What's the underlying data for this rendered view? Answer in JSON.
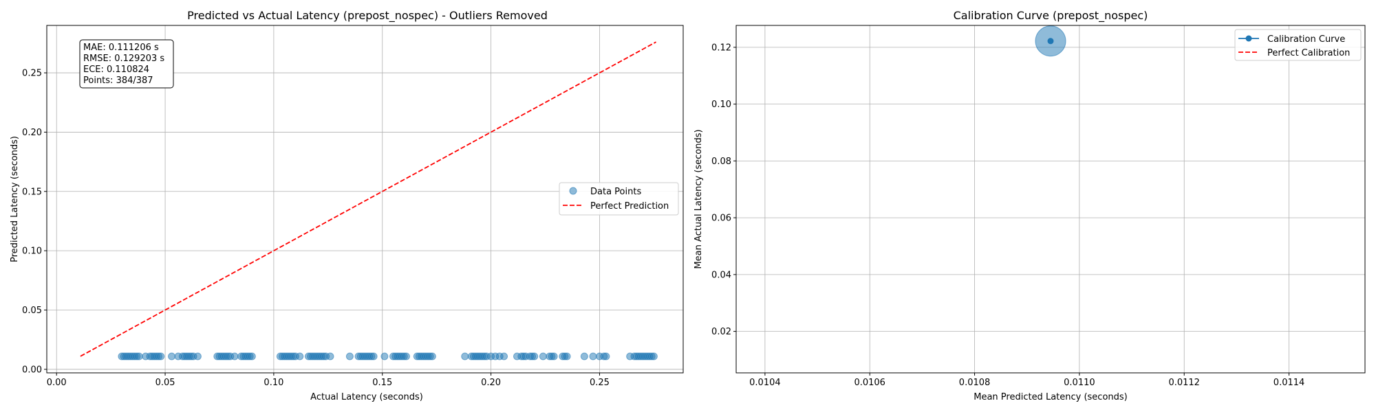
{
  "chart_data": [
    {
      "type": "scatter",
      "title": "Predicted vs Actual Latency (prepost_nospec) - Outliers Removed",
      "xlabel": "Actual Latency (seconds)",
      "ylabel": "Predicted Latency (seconds)",
      "xlim": [
        -0.0045,
        0.2885
      ],
      "ylim": [
        -0.003,
        0.29
      ],
      "xticks": [
        0.0,
        0.05,
        0.1,
        0.15,
        0.2,
        0.25
      ],
      "xtick_labels": [
        "0.00",
        "0.05",
        "0.10",
        "0.15",
        "0.20",
        "0.25"
      ],
      "yticks": [
        0.0,
        0.05,
        0.1,
        0.15,
        0.2,
        0.25
      ],
      "ytick_labels": [
        "0.00",
        "0.05",
        "0.10",
        "0.15",
        "0.20",
        "0.25"
      ],
      "grid": true,
      "legend_position": "center-right",
      "stats": {
        "mae": "MAE: 0.111206 s",
        "rmse": "RMSE: 0.129203 s",
        "ece": "ECE: 0.110824",
        "points": "Points: 384/387"
      },
      "series": [
        {
          "name": "Data Points",
          "kind": "scatter",
          "color": "#1f77b4",
          "alpha": 0.5,
          "y_constant": 0.0109,
          "x": [
            0.03,
            0.031,
            0.032,
            0.033,
            0.034,
            0.035,
            0.036,
            0.037,
            0.038,
            0.041,
            0.043,
            0.044,
            0.045,
            0.046,
            0.047,
            0.048,
            0.053,
            0.056,
            0.058,
            0.059,
            0.06,
            0.061,
            0.062,
            0.063,
            0.065,
            0.074,
            0.075,
            0.076,
            0.077,
            0.078,
            0.079,
            0.08,
            0.082,
            0.085,
            0.086,
            0.087,
            0.088,
            0.089,
            0.09,
            0.103,
            0.104,
            0.105,
            0.106,
            0.107,
            0.108,
            0.109,
            0.11,
            0.112,
            0.116,
            0.117,
            0.118,
            0.119,
            0.12,
            0.121,
            0.122,
            0.123,
            0.124,
            0.126,
            0.135,
            0.139,
            0.14,
            0.141,
            0.142,
            0.143,
            0.144,
            0.145,
            0.146,
            0.151,
            0.155,
            0.156,
            0.157,
            0.158,
            0.159,
            0.16,
            0.161,
            0.166,
            0.167,
            0.168,
            0.169,
            0.17,
            0.171,
            0.172,
            0.173,
            0.188,
            0.191,
            0.192,
            0.193,
            0.194,
            0.195,
            0.196,
            0.197,
            0.198,
            0.2,
            0.202,
            0.204,
            0.206,
            0.212,
            0.214,
            0.215,
            0.216,
            0.218,
            0.219,
            0.22,
            0.224,
            0.227,
            0.228,
            0.229,
            0.233,
            0.234,
            0.235,
            0.243,
            0.247,
            0.25,
            0.252,
            0.253,
            0.264,
            0.266,
            0.267,
            0.268,
            0.269,
            0.27,
            0.271,
            0.272,
            0.273,
            0.274,
            0.275
          ]
        },
        {
          "name": "Perfect Prediction",
          "kind": "line",
          "color": "#ff0000",
          "dashed": true,
          "x": [
            0.011,
            0.276
          ],
          "y": [
            0.011,
            0.276
          ]
        }
      ]
    },
    {
      "type": "scatter",
      "title": "Calibration Curve (prepost_nospec)",
      "xlabel": "Mean Predicted Latency (seconds)",
      "ylabel": "Mean Actual Latency (seconds)",
      "xlim": [
        0.010345,
        0.011545
      ],
      "ylim": [
        0.0054,
        0.1277
      ],
      "xticks": [
        0.0104,
        0.0106,
        0.0108,
        0.011,
        0.0112,
        0.0114
      ],
      "xtick_labels": [
        "0.0104",
        "0.0106",
        "0.0108",
        "0.0110",
        "0.0112",
        "0.0114"
      ],
      "yticks": [
        0.02,
        0.04,
        0.06,
        0.08,
        0.1,
        0.12
      ],
      "ytick_labels": [
        "0.02",
        "0.04",
        "0.06",
        "0.08",
        "0.10",
        "0.12"
      ],
      "grid": true,
      "legend_position": "top-right",
      "series": [
        {
          "name": "Calibration Curve",
          "kind": "line-marker",
          "color": "#1f77b4",
          "x": [
            0.010945
          ],
          "y": [
            0.1222
          ],
          "bin_size_marker": true
        },
        {
          "name": "Perfect Calibration",
          "kind": "line",
          "color": "#ff0000",
          "dashed": true,
          "x": [],
          "y": []
        }
      ]
    }
  ]
}
